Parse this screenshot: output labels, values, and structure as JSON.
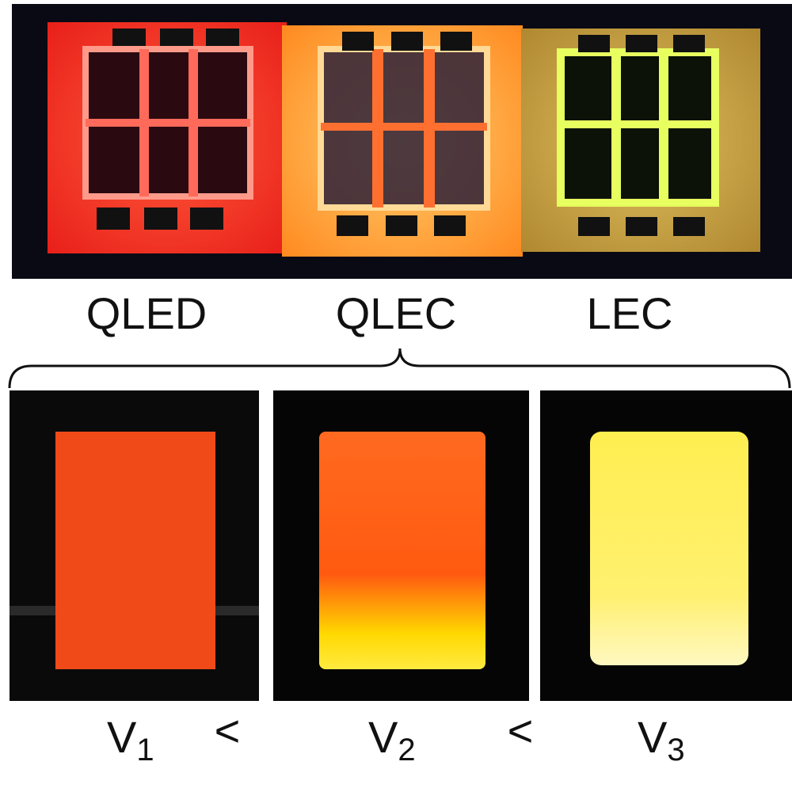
{
  "top_labels": [
    "QLED",
    "QLEC",
    "LEC"
  ],
  "bottom_labels": [
    {
      "symbol": "V",
      "subscript": "1"
    },
    {
      "symbol": "V",
      "subscript": "2"
    },
    {
      "symbol": "V",
      "subscript": "3"
    }
  ],
  "comparators": [
    "<",
    "<"
  ]
}
